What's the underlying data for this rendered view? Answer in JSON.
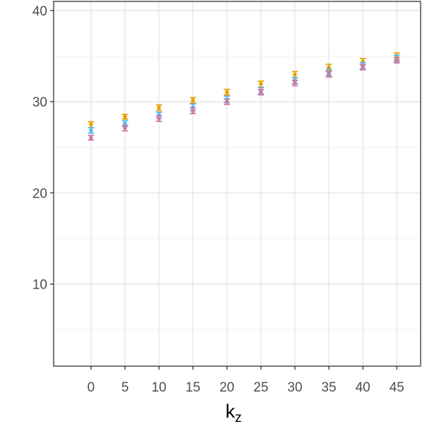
{
  "chart_data": {
    "type": "scatter",
    "title": "",
    "xlabel": "k",
    "xlabel_subscript": "z",
    "ylabel": "",
    "x": [
      0,
      5,
      10,
      15,
      20,
      25,
      30,
      35,
      40,
      45
    ],
    "xlim": [
      -5.5,
      48.5
    ],
    "ylim": [
      1,
      41
    ],
    "x_ticks": [
      0,
      5,
      10,
      15,
      20,
      25,
      30,
      35,
      40,
      45
    ],
    "y_ticks": [
      10,
      20,
      30,
      40
    ],
    "y_minor_ticks": [
      5,
      15,
      25,
      35
    ],
    "grid": true,
    "legend": "none",
    "error_bar_halfwidth": 0.45,
    "series": [
      {
        "color": "#E69F00",
        "offset": 0,
        "values": [
          27.5,
          28.35,
          29.35,
          30.15,
          31.05,
          31.95,
          32.95,
          33.75,
          34.4,
          35.0
        ],
        "lower": [
          27.15,
          28.1,
          29.05,
          29.85,
          30.75,
          31.6,
          32.6,
          33.4,
          34.05,
          34.6
        ],
        "upper": [
          27.8,
          28.6,
          29.65,
          30.45,
          31.35,
          32.25,
          33.3,
          34.1,
          34.75,
          35.35
        ]
      },
      {
        "color": "#56B4E9",
        "offset": 0,
        "values": [
          26.85,
          27.6,
          28.55,
          29.4,
          30.25,
          31.2,
          32.3,
          33.2,
          33.95,
          34.75
        ],
        "lower": [
          26.55,
          27.3,
          28.25,
          29.05,
          29.9,
          30.85,
          31.95,
          32.85,
          33.6,
          34.4
        ],
        "upper": [
          27.15,
          27.9,
          28.85,
          29.75,
          30.6,
          31.55,
          32.65,
          33.55,
          34.3,
          35.1
        ]
      },
      {
        "color": "#CC79A7",
        "offset": 0,
        "values": [
          26.05,
          27.1,
          28.15,
          29.0,
          30.0,
          31.05,
          32.05,
          33.0,
          33.8,
          34.55
        ],
        "lower": [
          25.8,
          26.8,
          27.85,
          28.7,
          29.7,
          30.75,
          31.75,
          32.7,
          33.5,
          34.25
        ],
        "upper": [
          26.3,
          27.4,
          28.45,
          29.3,
          30.3,
          31.35,
          32.35,
          33.3,
          34.1,
          34.85
        ]
      }
    ]
  }
}
